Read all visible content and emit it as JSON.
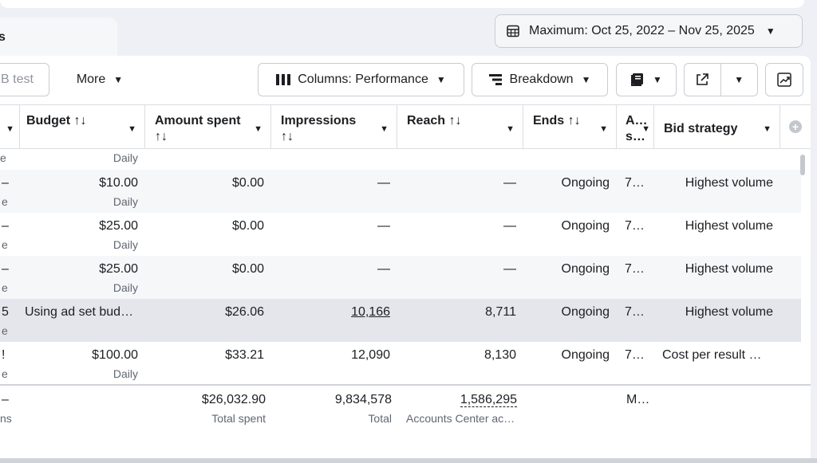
{
  "tab": {
    "label": "s"
  },
  "date_range": {
    "label": "Maximum: Oct 25, 2022 – Nov 25, 2025"
  },
  "toolbar": {
    "ab_test": "B test",
    "more": "More",
    "columns": "Columns: Performance",
    "breakdown": "Breakdown"
  },
  "columns": {
    "budget": "Budget ↑↓",
    "amount_spent": "Amount spent",
    "amount_spent_sort": "↑↓",
    "impressions": "Impressions",
    "impressions_sort": "↑↓",
    "reach": "Reach ↑↓",
    "ends": "Ends ↑↓",
    "attribution_1": "A…",
    "attribution_2": "s…",
    "bid_strategy": "Bid strategy"
  },
  "top_partial": {
    "budget_sub": "Daily",
    "left_frag": "e"
  },
  "rows": [
    {
      "left": "–",
      "left_sub": "e",
      "budget": "$10.00",
      "budget_sub": "Daily",
      "spent": "$0.00",
      "impressions": "—",
      "reach": "—",
      "ends": "Ongoing",
      "attr": "7…",
      "bid": "Highest volume"
    },
    {
      "left": "–",
      "left_sub": "e",
      "budget": "$25.00",
      "budget_sub": "Daily",
      "spent": "$0.00",
      "impressions": "—",
      "reach": "—",
      "ends": "Ongoing",
      "attr": "7…",
      "bid": "Highest volume"
    },
    {
      "left": "–",
      "left_sub": "e",
      "budget": "$25.00",
      "budget_sub": "Daily",
      "spent": "$0.00",
      "impressions": "—",
      "reach": "—",
      "ends": "Ongoing",
      "attr": "7…",
      "bid": "Highest volume"
    },
    {
      "left": "5",
      "left_sub": "e",
      "budget": "Using ad set bud…",
      "budget_sub": "",
      "spent": "$26.06",
      "impressions": "10,166",
      "reach": "8,711",
      "ends": "Ongoing",
      "attr": "7…",
      "bid": "Highest volume"
    },
    {
      "left": "!",
      "left_sub": "e",
      "budget": "$100.00",
      "budget_sub": "Daily",
      "spent": "$33.21",
      "impressions": "12,090",
      "reach": "8,130",
      "ends": "Ongoing",
      "attr": "7…",
      "bid": "Cost per result …"
    }
  ],
  "totals": {
    "left": "–",
    "left_sub": "ns",
    "spent": "$26,032.90",
    "spent_sub": "Total spent",
    "impressions": "9,834,578",
    "impressions_sub": "Total",
    "reach": "1,586,295",
    "reach_sub": "Accounts Center ac…",
    "attr": "M…"
  }
}
